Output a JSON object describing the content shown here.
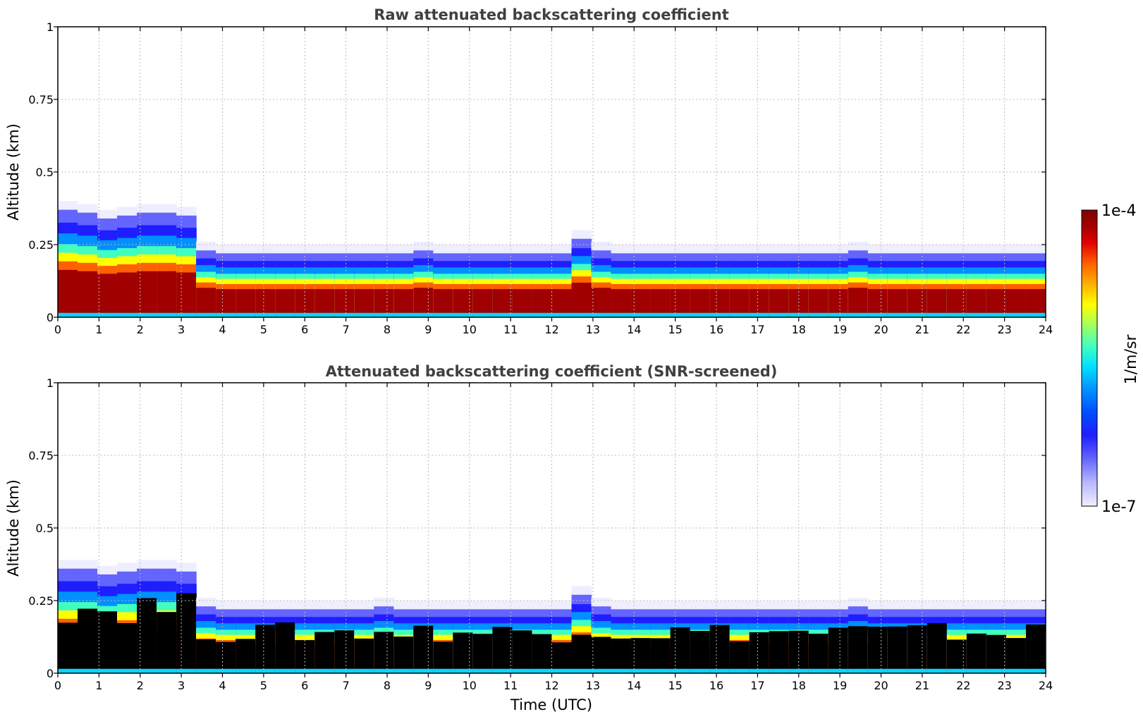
{
  "chart_data": [
    {
      "type": "heatmap",
      "title": "Raw attenuated backscattering coefficient",
      "xlabel": "",
      "ylabel": "Altitude (km)",
      "xlim": [
        0,
        24
      ],
      "ylim": [
        0,
        1
      ],
      "x_ticks": [
        "0",
        "1",
        "2",
        "3",
        "4",
        "5",
        "6",
        "7",
        "8",
        "9",
        "10",
        "11",
        "12",
        "13",
        "14",
        "15",
        "16",
        "17",
        "18",
        "19",
        "20",
        "21",
        "22",
        "23",
        "24"
      ],
      "y_ticks": [
        "0",
        "0.25",
        "0.5",
        "0.75",
        "1"
      ],
      "grid": true,
      "screened": false,
      "layer_top_km": [
        0.37,
        0.36,
        0.34,
        0.35,
        0.36,
        0.36,
        0.35,
        0.23,
        0.22,
        0.22,
        0.22,
        0.22,
        0.22,
        0.22,
        0.22,
        0.22,
        0.22,
        0.22,
        0.23,
        0.22,
        0.22,
        0.22,
        0.22,
        0.22,
        0.22,
        0.22,
        0.27,
        0.23,
        0.22,
        0.22,
        0.22,
        0.22,
        0.22,
        0.22,
        0.22,
        0.22,
        0.22,
        0.22,
        0.22,
        0.22,
        0.23,
        0.22,
        0.22,
        0.22,
        0.22,
        0.22,
        0.22,
        0.22,
        0.22,
        0.22
      ]
    },
    {
      "type": "heatmap",
      "title": "Attenuated backscattering coefficient (SNR-screened)",
      "xlabel": "Time (UTC)",
      "ylabel": "Altitude (km)",
      "xlim": [
        0,
        24
      ],
      "ylim": [
        0,
        1
      ],
      "x_ticks": [
        "0",
        "1",
        "2",
        "3",
        "4",
        "5",
        "6",
        "7",
        "8",
        "9",
        "10",
        "11",
        "12",
        "13",
        "14",
        "15",
        "16",
        "17",
        "18",
        "19",
        "20",
        "21",
        "22",
        "23",
        "24"
      ],
      "y_ticks": [
        "0",
        "0.25",
        "0.5",
        "0.75",
        "1"
      ],
      "grid": true,
      "screened": true,
      "layer_top_km": [
        0.36,
        0.36,
        0.34,
        0.35,
        0.36,
        0.36,
        0.35,
        0.23,
        0.22,
        0.22,
        0.22,
        0.22,
        0.22,
        0.22,
        0.22,
        0.22,
        0.23,
        0.22,
        0.22,
        0.22,
        0.22,
        0.22,
        0.22,
        0.22,
        0.22,
        0.22,
        0.27,
        0.23,
        0.22,
        0.22,
        0.22,
        0.22,
        0.22,
        0.22,
        0.22,
        0.22,
        0.22,
        0.22,
        0.22,
        0.22,
        0.23,
        0.22,
        0.22,
        0.22,
        0.22,
        0.22,
        0.22,
        0.22,
        0.22,
        0.22
      ]
    }
  ],
  "colorbar": {
    "label": "1/m/sr",
    "max_label": "1e-4",
    "min_label": "1e-7",
    "scale": "log",
    "range": [
      1e-07,
      0.0001
    ],
    "colormap": [
      "#eeeeff",
      "#b8b8ff",
      "#6464ff",
      "#1e1eff",
      "#0040ff",
      "#0090ff",
      "#00d8ff",
      "#40ffc0",
      "#a0ff60",
      "#ffff00",
      "#ffb000",
      "#ff6000",
      "#e00000",
      "#a00000",
      "#7f0000"
    ]
  }
}
